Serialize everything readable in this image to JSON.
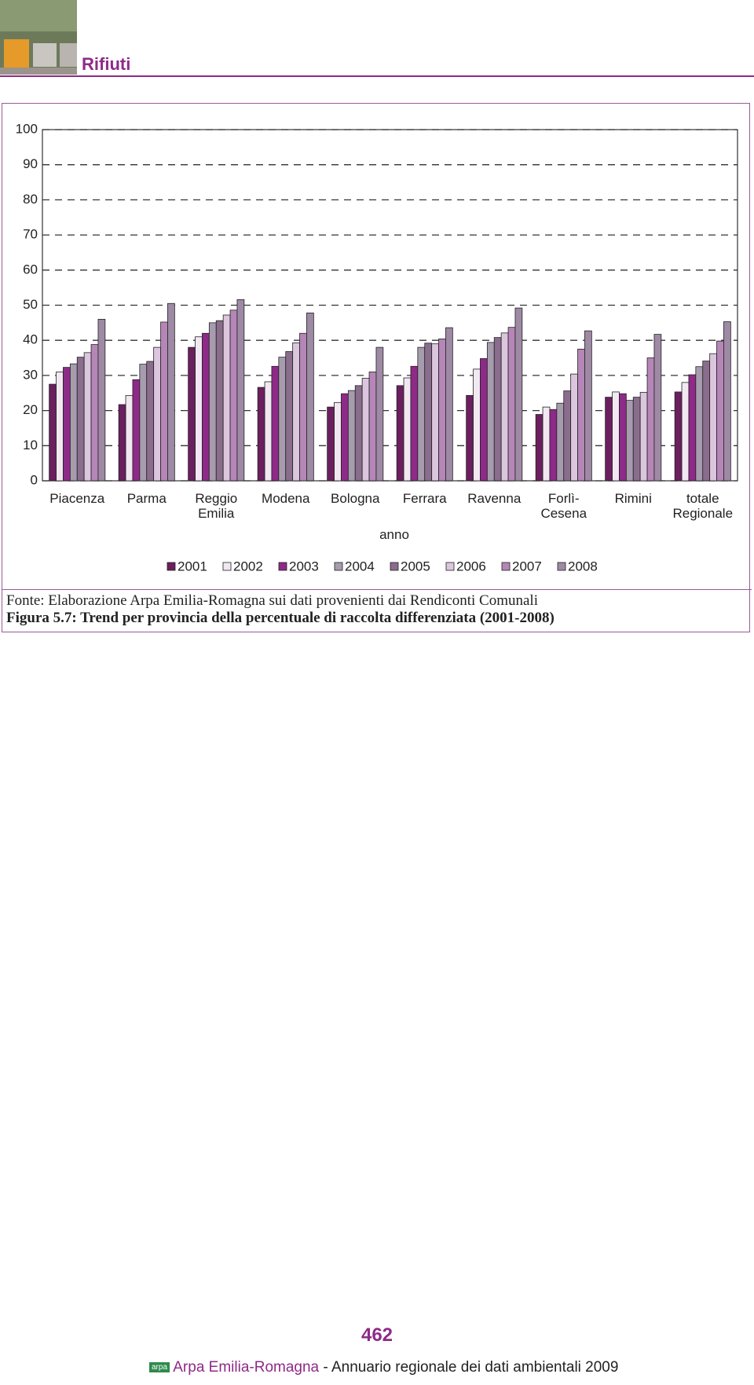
{
  "header": {
    "section": "Rifiuti"
  },
  "chart_data": {
    "type": "bar",
    "categories": [
      "Piacenza",
      "Parma",
      "Reggio Emilia",
      "Modena",
      "Bologna",
      "Ferrara",
      "Ravenna",
      "Forlì-Cesena",
      "Rimini",
      "totale Regionale"
    ],
    "x_label": "anno",
    "series": [
      {
        "name": "2001",
        "color": "#6b1f5f",
        "values": [
          27.5,
          21.7,
          38,
          26.6,
          21,
          27.1,
          24.3,
          18.9,
          23.8,
          25.3
        ]
      },
      {
        "name": "2002",
        "color": "#f1e8f2",
        "values": [
          31,
          24.3,
          41,
          28.2,
          22.3,
          29.3,
          31.8,
          21,
          25.3,
          28
        ]
      },
      {
        "name": "2003",
        "color": "#8e2a88",
        "values": [
          32.3,
          28.8,
          42,
          32.6,
          24.8,
          32.6,
          34.8,
          20.3,
          24.8,
          30.2
        ]
      },
      {
        "name": "2004",
        "color": "#a69cae",
        "values": [
          33.3,
          33.2,
          45,
          35.2,
          25.7,
          38,
          39.4,
          22.1,
          22.9,
          32.5
        ]
      },
      {
        "name": "2005",
        "color": "#8a6d8d",
        "values": [
          35.2,
          34,
          45.6,
          36.8,
          27.1,
          39.2,
          40.8,
          25.6,
          23.8,
          34.1
        ]
      },
      {
        "name": "2006",
        "color": "#dbc6de",
        "values": [
          36.5,
          38,
          47.2,
          39.3,
          29.2,
          39,
          42.1,
          30.4,
          25.2,
          36.2
        ]
      },
      {
        "name": "2007",
        "color": "#b586b7",
        "values": [
          38.8,
          45.2,
          48.6,
          42,
          31,
          40.4,
          43.7,
          37.5,
          35,
          39.8
        ]
      },
      {
        "name": "2008",
        "color": "#9e8aa4",
        "values": [
          46,
          50.5,
          51.6,
          47.8,
          38,
          43.6,
          49.2,
          42.7,
          41.7,
          45.3
        ]
      }
    ],
    "ylim": [
      0,
      100
    ],
    "yticks": [
      0,
      10,
      20,
      30,
      40,
      50,
      60,
      70,
      80,
      90,
      100
    ],
    "grid": true,
    "legend": "bottom"
  },
  "source": "Fonte: Elaborazione Arpa Emilia-Romagna sui dati provenienti dai Rendiconti Comunali",
  "caption": "Figura 5.7: Trend per provincia della percentuale di raccolta differenziata (2001-2008)",
  "footer": {
    "page": "462",
    "logo": "arpa",
    "org": "Arpa Emilia-Romagna",
    "text": "- Annuario regionale dei dati ambientali 2009"
  }
}
